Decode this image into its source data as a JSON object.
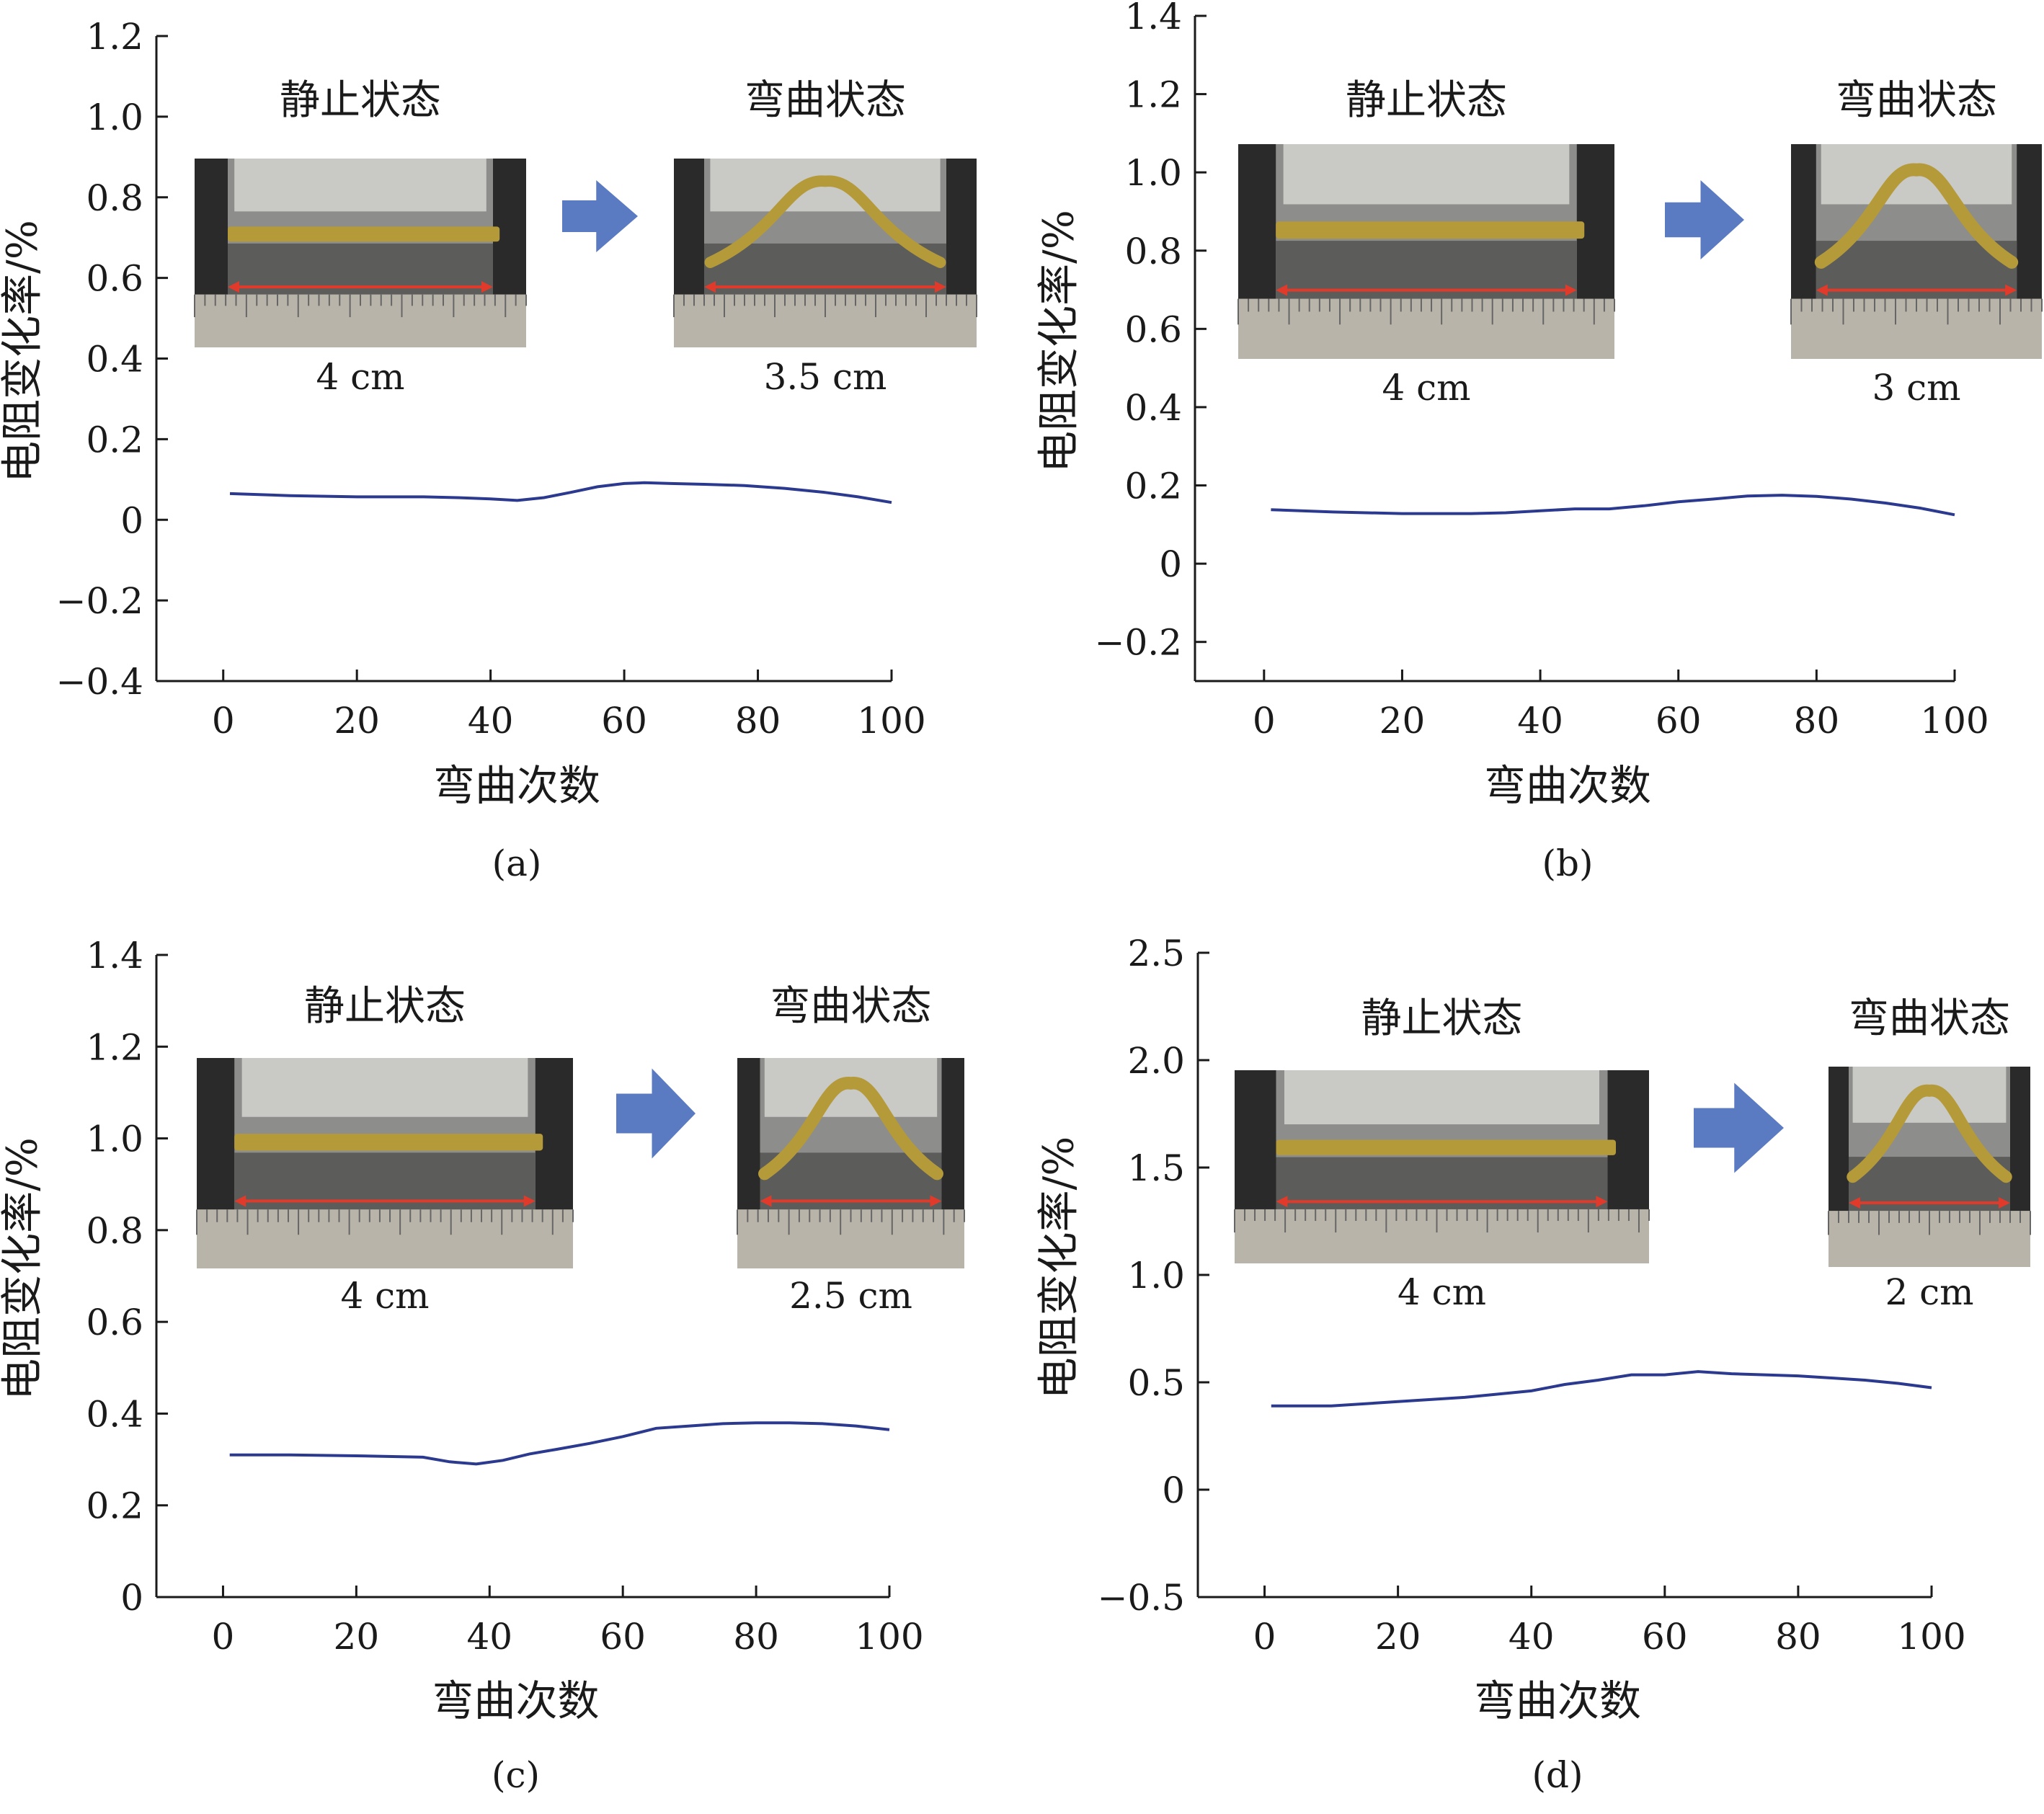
{
  "chart_data": [
    {
      "type": "line",
      "panel_label": "(a)",
      "xlabel": "弯曲次数",
      "ylabel": "电阻变化率/%",
      "xlim": [
        -10,
        100
      ],
      "ylim": [
        -0.4,
        1.2
      ],
      "x_ticks": [
        "0",
        "20",
        "40",
        "60",
        "80",
        "100"
      ],
      "y_ticks": [
        "−0.4",
        "−0.2",
        "0",
        "0.2",
        "0.4",
        "0.6",
        "0.8",
        "1.0",
        "1.2"
      ],
      "line_color": "#2b3a8f",
      "series": [
        {
          "x": [
            1,
            10,
            20,
            30,
            35,
            40,
            44,
            48,
            52,
            56,
            60,
            63,
            67,
            72,
            78,
            84,
            90,
            95,
            100
          ],
          "values": [
            0.065,
            0.06,
            0.057,
            0.057,
            0.055,
            0.052,
            0.048,
            0.055,
            0.068,
            0.082,
            0.09,
            0.092,
            0.09,
            0.088,
            0.085,
            0.078,
            0.068,
            0.057,
            0.043
          ]
        }
      ],
      "insets": {
        "static_label": "静止状态",
        "bent_label": "弯曲状态",
        "static_length": "4 cm",
        "bent_length": "3.5 cm"
      }
    },
    {
      "type": "line",
      "panel_label": "(b)",
      "xlabel": "弯曲次数",
      "ylabel": "电阻变化率/%",
      "xlim": [
        -10,
        100
      ],
      "ylim": [
        -0.3,
        1.4
      ],
      "x_ticks": [
        "0",
        "20",
        "40",
        "60",
        "80",
        "100"
      ],
      "y_ticks": [
        "−0.2",
        "0",
        "0.2",
        "0.4",
        "0.6",
        "0.8",
        "1.0",
        "1.2",
        "1.4"
      ],
      "line_color": "#2b3a8f",
      "series": [
        {
          "x": [
            1,
            10,
            20,
            30,
            35,
            40,
            45,
            50,
            55,
            60,
            65,
            70,
            75,
            80,
            85,
            90,
            95,
            100
          ],
          "values": [
            0.138,
            0.132,
            0.128,
            0.128,
            0.13,
            0.135,
            0.14,
            0.14,
            0.148,
            0.158,
            0.165,
            0.173,
            0.175,
            0.172,
            0.165,
            0.155,
            0.142,
            0.125
          ]
        }
      ],
      "insets": {
        "static_label": "静止状态",
        "bent_label": "弯曲状态",
        "static_length": "4 cm",
        "bent_length": "3 cm"
      }
    },
    {
      "type": "line",
      "panel_label": "(c)",
      "xlabel": "弯曲次数",
      "ylabel": "电阻变化率/%",
      "xlim": [
        -10,
        100
      ],
      "ylim": [
        0,
        1.4
      ],
      "x_ticks": [
        "0",
        "20",
        "40",
        "60",
        "80",
        "100"
      ],
      "y_ticks": [
        "0",
        "0.2",
        "0.4",
        "0.6",
        "0.8",
        "1.0",
        "1.2",
        "1.4"
      ],
      "line_color": "#2b3a8f",
      "series": [
        {
          "x": [
            1,
            10,
            20,
            30,
            34,
            38,
            42,
            46,
            50,
            55,
            60,
            65,
            70,
            75,
            80,
            85,
            90,
            95,
            100
          ],
          "values": [
            0.31,
            0.31,
            0.308,
            0.305,
            0.295,
            0.29,
            0.298,
            0.312,
            0.322,
            0.335,
            0.35,
            0.368,
            0.373,
            0.378,
            0.38,
            0.38,
            0.378,
            0.373,
            0.365
          ]
        }
      ],
      "insets": {
        "static_label": "静止状态",
        "bent_label": "弯曲状态",
        "static_length": "4 cm",
        "bent_length": "2.5 cm"
      }
    },
    {
      "type": "line",
      "panel_label": "(d)",
      "xlabel": "弯曲次数",
      "ylabel": "电阻变化率/%",
      "xlim": [
        -10,
        100
      ],
      "ylim": [
        -0.5,
        2.5
      ],
      "x_ticks": [
        "0",
        "20",
        "40",
        "60",
        "80",
        "100"
      ],
      "y_ticks": [
        "−0.5",
        "0",
        "0.5",
        "1.0",
        "1.5",
        "2.0",
        "2.5"
      ],
      "line_color": "#2b3a8f",
      "series": [
        {
          "x": [
            1,
            10,
            20,
            30,
            40,
            45,
            50,
            55,
            60,
            65,
            70,
            75,
            80,
            85,
            90,
            95,
            100
          ],
          "values": [
            0.39,
            0.39,
            0.41,
            0.43,
            0.46,
            0.49,
            0.51,
            0.535,
            0.535,
            0.55,
            0.54,
            0.535,
            0.53,
            0.52,
            0.51,
            0.495,
            0.475
          ]
        }
      ],
      "insets": {
        "static_label": "静止状态",
        "bent_label": "弯曲状态",
        "static_length": "4 cm",
        "bent_length": "2 cm"
      }
    }
  ]
}
